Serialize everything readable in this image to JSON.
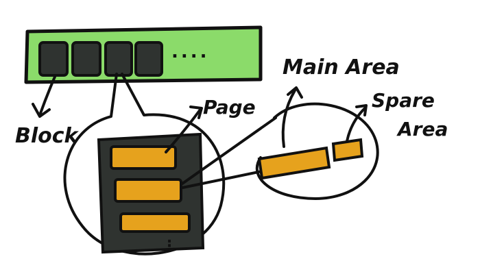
{
  "labels": {
    "block": "Block",
    "page": "Page",
    "main_area": "Main Area",
    "spare_line1": "Spare",
    "spare_line2": "Area",
    "ellipsis": "....",
    "more_dots": "⋮"
  },
  "colors": {
    "flash_bar": "#8BDB6A",
    "block_fill": "#2F3330",
    "page_fill": "#E6A21D",
    "ink": "#111111",
    "background": "#FFFFFF"
  }
}
